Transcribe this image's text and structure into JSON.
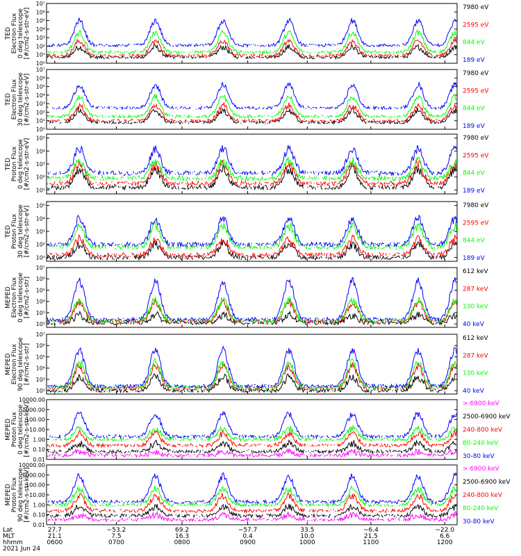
{
  "colors": {
    "blue": "#0000ff",
    "red": "#ff0000",
    "green": "#00ff00",
    "black": "#000000",
    "magenta": "#ff00ff"
  },
  "chart_data": [
    {
      "type": "line",
      "ylabel": [
        "TED",
        "Electron Flux",
        "0 deg telescope",
        "[#/cm2-s-str-eV]"
      ],
      "yscale": "log",
      "yticks": [
        "10⁰",
        "10¹",
        "10²",
        "10³",
        "10⁴",
        "10⁵",
        "10⁶",
        "10⁷"
      ],
      "ylim_exp": [
        0,
        7
      ],
      "series": [
        {
          "name": "7980 eV",
          "color": "#000000",
          "base": 0.7,
          "peak": 1.9
        },
        {
          "name": "2595 eV",
          "color": "#ff0000",
          "base": 0.9,
          "peak": 2.6
        },
        {
          "name": "844 eV",
          "color": "#00ff00",
          "base": 1.3,
          "peak": 3.6
        },
        {
          "name": "189 eV",
          "color": "#0000ff",
          "base": 2.1,
          "peak": 5.0
        }
      ]
    },
    {
      "type": "line",
      "ylabel": [
        "TED",
        "Electron Flux",
        "30 deg telescope",
        "[#/cm2-s-str-eV]"
      ],
      "yscale": "log",
      "yticks": [
        "10⁰",
        "10¹",
        "10²",
        "10³",
        "10⁴",
        "10⁵",
        "10⁶",
        "10⁷"
      ],
      "ylim_exp": [
        0,
        7
      ],
      "series": [
        {
          "name": "7980 eV",
          "color": "#000000",
          "base": 0.8,
          "peak": 2.2
        },
        {
          "name": "2595 eV",
          "color": "#ff0000",
          "base": 1.0,
          "peak": 2.8
        },
        {
          "name": "844 eV",
          "color": "#00ff00",
          "base": 1.5,
          "peak": 3.8
        },
        {
          "name": "189 eV",
          "color": "#0000ff",
          "base": 2.5,
          "peak": 5.2
        }
      ]
    },
    {
      "type": "line",
      "ylabel": [
        "TED",
        "Proton Flux",
        "0 deg telescope",
        "[#/cm2-s-str-eV]"
      ],
      "yscale": "log",
      "yticks": [
        "10¹",
        "10²",
        "10³",
        "10⁴",
        "10⁵"
      ],
      "ylim_exp": [
        0.7,
        5.3
      ],
      "series": [
        {
          "name": "7980 eV",
          "color": "#000000",
          "base": 1.2,
          "peak": 2.6
        },
        {
          "name": "2595 eV",
          "color": "#ff0000",
          "base": 1.5,
          "peak": 3.0
        },
        {
          "name": "844 eV",
          "color": "#00ff00",
          "base": 1.9,
          "peak": 3.2
        },
        {
          "name": "189 eV",
          "color": "#0000ff",
          "base": 2.3,
          "peak": 4.2
        }
      ]
    },
    {
      "type": "line",
      "ylabel": [
        "TED",
        "Proton Flux",
        "30 deg telescope",
        "[#/cm2-s-str-eV]"
      ],
      "yscale": "log",
      "yticks": [
        "10¹",
        "10²",
        "10³",
        "10⁴",
        "10⁵"
      ],
      "ylim_exp": [
        0.7,
        5.3
      ],
      "series": [
        {
          "name": "7980 eV",
          "color": "#000000",
          "base": 1.0,
          "peak": 2.0
        },
        {
          "name": "2595 eV",
          "color": "#ff0000",
          "base": 1.2,
          "peak": 2.4
        },
        {
          "name": "844 eV",
          "color": "#00ff00",
          "base": 1.8,
          "peak": 3.4
        },
        {
          "name": "189 eV",
          "color": "#0000ff",
          "base": 2.0,
          "peak": 4.0
        }
      ]
    },
    {
      "type": "line",
      "ylabel": [
        "MEPED",
        "Electron Flux",
        "0 deg telescope",
        "[#/cm2-s-str]"
      ],
      "yscale": "log",
      "yticks": [
        "10²",
        "10³",
        "10⁴",
        "10⁵",
        "10⁶",
        "10⁷"
      ],
      "ylim_exp": [
        1.7,
        7
      ],
      "series": [
        {
          "name": "612 keV",
          "color": "#000000",
          "base": 2.1,
          "peak": 2.8
        },
        {
          "name": "287 keV",
          "color": "#ff0000",
          "base": 2.2,
          "peak": 3.9
        },
        {
          "name": "130 keV",
          "color": "#00ff00",
          "base": 2.3,
          "peak": 4.1
        },
        {
          "name": "40 keV",
          "color": "#0000ff",
          "base": 2.4,
          "peak": 5.8
        }
      ]
    },
    {
      "type": "line",
      "ylabel": [
        "MEPED",
        "Electron Flux",
        "90 deg telescope",
        "[#/cm2-s-str]"
      ],
      "yscale": "log",
      "yticks": [
        "10²",
        "10³",
        "10⁴",
        "10⁵",
        "10⁶",
        "10⁷"
      ],
      "ylim_exp": [
        1.7,
        7
      ],
      "series": [
        {
          "name": "612 keV",
          "color": "#000000",
          "base": 2.0,
          "peak": 3.2
        },
        {
          "name": "287 keV",
          "color": "#ff0000",
          "base": 2.2,
          "peak": 4.2
        },
        {
          "name": "130 keV",
          "color": "#00ff00",
          "base": 2.3,
          "peak": 4.5
        },
        {
          "name": "40 keV",
          "color": "#0000ff",
          "base": 2.4,
          "peak": 5.6
        }
      ]
    },
    {
      "type": "line",
      "ylabel": [
        "MEPED",
        "Proton Flux",
        "0 deg telescope",
        "[#/cm2-s-str-keV]"
      ],
      "yscale": "log",
      "yticks": [
        "0.01",
        "0.10",
        "1.00",
        "10.00",
        "100.00",
        "1000.00",
        "10000.00"
      ],
      "ylim_exp": [
        -2,
        4
      ],
      "series": [
        {
          "name": "> 6900 keV",
          "color": "#ff00ff",
          "base": -1.6,
          "peak": -1.2
        },
        {
          "name": "2500-6900 keV",
          "color": "#000000",
          "base": -1.2,
          "peak": -0.4
        },
        {
          "name": "240-800 keV",
          "color": "#ff0000",
          "base": -0.6,
          "peak": 0.6
        },
        {
          "name": "80-240 keV",
          "color": "#00ff00",
          "base": 0.0,
          "peak": 1.1
        },
        {
          "name": "30-80 keV",
          "color": "#0000ff",
          "base": 0.3,
          "peak": 2.6
        }
      ]
    },
    {
      "type": "line",
      "ylabel": [
        "MEPED",
        "Proton Flux",
        "90 deg telescope",
        "[#/cm2-s-str-keV]"
      ],
      "yscale": "log",
      "yticks": [
        "0.01",
        "0.10",
        "1.00",
        "10.00",
        "100.00",
        "1000.00",
        "10000.00"
      ],
      "ylim_exp": [
        -2,
        4
      ],
      "series": [
        {
          "name": "> 6900 keV",
          "color": "#ff00ff",
          "base": -1.5,
          "peak": -1.0
        },
        {
          "name": "2500-6900 keV",
          "color": "#000000",
          "base": -1.1,
          "peak": -0.2
        },
        {
          "name": "240-800 keV",
          "color": "#ff0000",
          "base": -0.6,
          "peak": 0.9
        },
        {
          "name": "80-240 keV",
          "color": "#00ff00",
          "base": 0.0,
          "peak": 1.6
        },
        {
          "name": "30-80 keV",
          "color": "#0000ff",
          "base": 0.3,
          "peak": 2.9
        }
      ]
    }
  ],
  "x_axis": {
    "rows": [
      {
        "label": "Lat",
        "values": [
          "27.7",
          "−53.2",
          "69.2",
          "−57.7",
          "33.5",
          "−6.4",
          "−22.0"
        ]
      },
      {
        "label": "MLT",
        "values": [
          "21.1",
          "7.5",
          "16.3",
          "0.4",
          "10.0",
          "21.5",
          "6.6"
        ]
      },
      {
        "label": "hhmm",
        "values": [
          "0600",
          "0700",
          "0800",
          "0900",
          "1000",
          "1100",
          "1200"
        ]
      }
    ],
    "date": "2021 Jun 24"
  }
}
